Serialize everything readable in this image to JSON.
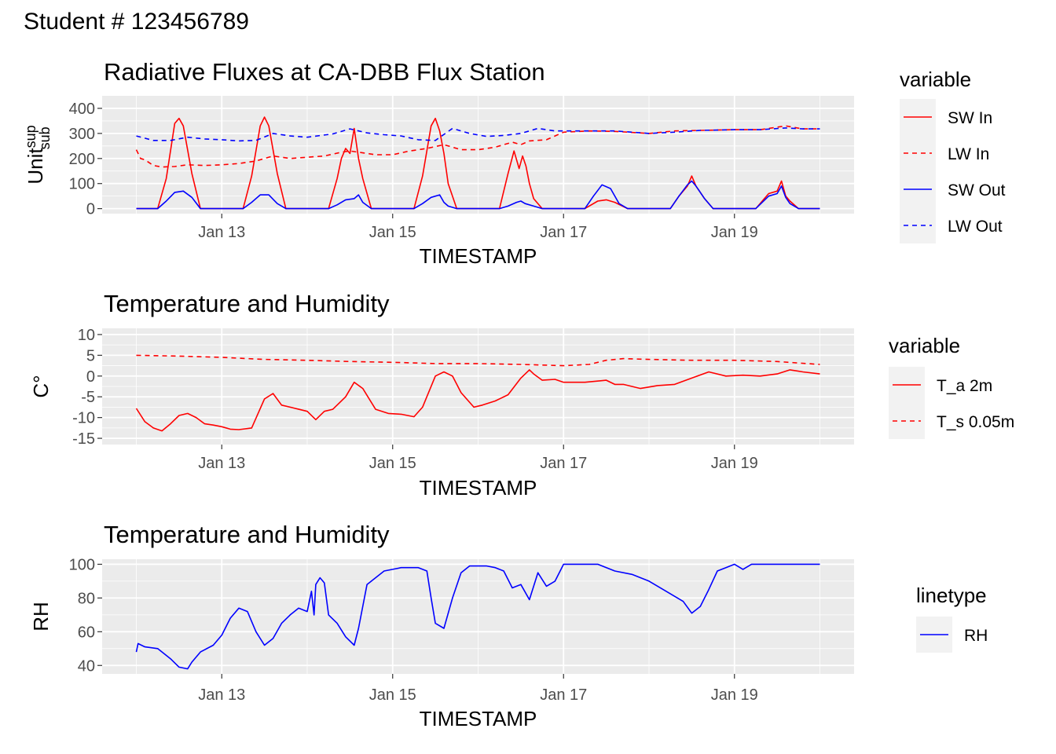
{
  "figure": {
    "main_title": "Student # 123456789"
  },
  "x_axis": {
    "label": "TIMESTAMP",
    "domain_days": [
      "Jan 12 00:00",
      "Jan 20 00:00"
    ],
    "ticks": [
      "Jan 13",
      "Jan 15",
      "Jan 17",
      "Jan 19"
    ],
    "tick_days": [
      13,
      15,
      17,
      19
    ]
  },
  "colors": {
    "red": "#ff0000",
    "blue": "#0000ff",
    "panel_bg": "#ebebeb",
    "grid": "#ffffff",
    "legend_key_bg": "#f2f2f2"
  },
  "chart_data": [
    {
      "type": "line",
      "title": "Radiative Fluxes at CA-DBB Flux Station",
      "xlabel": "TIMESTAMP",
      "ylabel": "Unit",
      "ylabel_sup": "sup",
      "ylabel_sub": "sub",
      "ylim": [
        -20,
        450
      ],
      "yticks": [
        0,
        100,
        200,
        300,
        400
      ],
      "ytick_labels": [
        "0",
        "100",
        "200",
        "300",
        "400"
      ],
      "legend": {
        "title": "variable",
        "position": "right"
      },
      "series": [
        {
          "name": "SW In",
          "color": "#ff0000",
          "dash": "solid",
          "x": [
            12.0,
            12.15,
            12.25,
            12.35,
            12.45,
            12.5,
            12.55,
            12.65,
            12.75,
            12.85,
            13.0,
            13.15,
            13.25,
            13.35,
            13.45,
            13.5,
            13.55,
            13.65,
            13.75,
            13.85,
            14.0,
            14.15,
            14.25,
            14.35,
            14.4,
            14.45,
            14.5,
            14.55,
            14.6,
            14.65,
            14.75,
            14.85,
            15.0,
            15.15,
            15.25,
            15.35,
            15.45,
            15.5,
            15.55,
            15.6,
            15.65,
            15.75,
            15.85,
            16.0,
            16.15,
            16.25,
            16.35,
            16.42,
            16.48,
            16.52,
            16.56,
            16.6,
            16.65,
            16.75,
            16.85,
            17.0,
            17.25,
            17.4,
            17.5,
            17.6,
            17.75,
            18.0,
            18.25,
            18.35,
            18.45,
            18.5,
            18.55,
            18.65,
            18.75,
            19.0,
            19.25,
            19.4,
            19.5,
            19.55,
            19.6,
            19.65,
            19.75,
            20.0
          ],
          "y": [
            0,
            0,
            0,
            120,
            340,
            360,
            330,
            140,
            0,
            0,
            0,
            0,
            0,
            130,
            330,
            365,
            330,
            140,
            0,
            0,
            0,
            0,
            0,
            120,
            200,
            240,
            220,
            320,
            200,
            120,
            0,
            0,
            0,
            0,
            0,
            130,
            330,
            360,
            310,
            220,
            100,
            0,
            0,
            0,
            0,
            0,
            140,
            230,
            160,
            210,
            170,
            100,
            40,
            0,
            0,
            0,
            0,
            30,
            35,
            25,
            0,
            0,
            0,
            50,
            90,
            130,
            90,
            40,
            0,
            0,
            0,
            60,
            70,
            110,
            50,
            30,
            0,
            0
          ]
        },
        {
          "name": "LW In",
          "color": "#ff0000",
          "dash": "dashed",
          "x": [
            12.0,
            12.05,
            12.1,
            12.2,
            12.3,
            12.45,
            12.6,
            12.8,
            13.0,
            13.2,
            13.4,
            13.5,
            13.6,
            13.8,
            14.0,
            14.2,
            14.4,
            14.5,
            14.6,
            14.8,
            15.0,
            15.2,
            15.4,
            15.6,
            15.8,
            16.0,
            16.2,
            16.4,
            16.5,
            16.6,
            16.8,
            17.0,
            17.3,
            17.6,
            18.0,
            18.3,
            18.6,
            19.0,
            19.3,
            19.6,
            19.8,
            20.0
          ],
          "y": [
            235,
            200,
            195,
            172,
            166,
            168,
            175,
            172,
            175,
            180,
            190,
            200,
            210,
            200,
            205,
            210,
            225,
            230,
            225,
            215,
            215,
            230,
            240,
            255,
            235,
            235,
            245,
            265,
            255,
            270,
            275,
            305,
            310,
            308,
            300,
            310,
            312,
            315,
            315,
            330,
            318,
            318
          ]
        },
        {
          "name": "SW Out",
          "color": "#0000ff",
          "dash": "solid",
          "x": [
            12.0,
            12.15,
            12.25,
            12.35,
            12.45,
            12.55,
            12.65,
            12.75,
            12.85,
            13.0,
            13.25,
            13.35,
            13.45,
            13.55,
            13.65,
            13.75,
            14.0,
            14.25,
            14.35,
            14.45,
            14.55,
            14.6,
            14.65,
            14.75,
            15.0,
            15.25,
            15.35,
            15.45,
            15.55,
            15.6,
            15.65,
            15.75,
            16.0,
            16.25,
            16.35,
            16.45,
            16.5,
            16.55,
            16.65,
            16.75,
            17.0,
            17.25,
            17.35,
            17.45,
            17.55,
            17.65,
            17.75,
            18.0,
            18.25,
            18.35,
            18.45,
            18.5,
            18.55,
            18.65,
            18.75,
            19.0,
            19.25,
            19.4,
            19.5,
            19.55,
            19.6,
            19.65,
            19.75,
            20.0
          ],
          "y": [
            0,
            0,
            0,
            30,
            65,
            70,
            45,
            0,
            0,
            0,
            0,
            25,
            55,
            55,
            20,
            0,
            0,
            0,
            15,
            35,
            40,
            55,
            25,
            0,
            0,
            0,
            20,
            45,
            55,
            25,
            10,
            0,
            0,
            0,
            10,
            25,
            30,
            20,
            10,
            0,
            0,
            0,
            50,
            95,
            80,
            20,
            0,
            0,
            0,
            50,
            95,
            110,
            90,
            40,
            0,
            0,
            0,
            50,
            60,
            90,
            45,
            20,
            0,
            0
          ]
        },
        {
          "name": "LW Out",
          "color": "#0000ff",
          "dash": "dashed",
          "x": [
            12.0,
            12.2,
            12.4,
            12.6,
            12.8,
            13.0,
            13.2,
            13.4,
            13.6,
            13.8,
            14.0,
            14.3,
            14.5,
            14.7,
            14.9,
            15.1,
            15.3,
            15.5,
            15.7,
            15.9,
            16.1,
            16.3,
            16.5,
            16.7,
            16.9,
            17.0,
            17.3,
            17.6,
            18.0,
            18.3,
            18.6,
            19.0,
            19.3,
            19.6,
            19.8,
            20.0
          ],
          "y": [
            290,
            272,
            272,
            285,
            278,
            275,
            270,
            272,
            300,
            290,
            285,
            298,
            318,
            302,
            295,
            290,
            275,
            272,
            320,
            300,
            288,
            292,
            300,
            320,
            310,
            310,
            310,
            310,
            300,
            305,
            312,
            315,
            315,
            322,
            318,
            318
          ]
        }
      ]
    },
    {
      "type": "line",
      "title": "Temperature and Humidity",
      "xlabel": "TIMESTAMP",
      "ylabel": "C°",
      "ylim": [
        -16.5,
        11.5
      ],
      "yticks": [
        -15,
        -10,
        -5,
        0,
        5,
        10
      ],
      "ytick_labels": [
        "-15",
        "-10",
        "-5",
        "0",
        "5",
        "10"
      ],
      "legend": {
        "title": "variable",
        "position": "right"
      },
      "series": [
        {
          "name": "T_a 2m",
          "color": "#ff0000",
          "dash": "solid",
          "x": [
            12.0,
            12.1,
            12.2,
            12.3,
            12.4,
            12.5,
            12.6,
            12.7,
            12.8,
            12.9,
            13.0,
            13.1,
            13.2,
            13.35,
            13.5,
            13.6,
            13.7,
            13.8,
            14.0,
            14.1,
            14.2,
            14.3,
            14.45,
            14.55,
            14.65,
            14.8,
            14.95,
            15.1,
            15.25,
            15.35,
            15.5,
            15.6,
            15.7,
            15.8,
            15.95,
            16.05,
            16.2,
            16.35,
            16.5,
            16.6,
            16.65,
            16.75,
            16.9,
            17.0,
            17.25,
            17.5,
            17.6,
            17.7,
            17.9,
            18.1,
            18.3,
            18.5,
            18.7,
            18.9,
            19.1,
            19.3,
            19.5,
            19.65,
            19.8,
            20.0
          ],
          "y": [
            -7.8,
            -11,
            -12.5,
            -13.2,
            -11.5,
            -9.5,
            -9,
            -10,
            -11.5,
            -11.8,
            -12.2,
            -12.8,
            -12.9,
            -12.5,
            -5.5,
            -4.2,
            -7,
            -7.5,
            -8.5,
            -10.5,
            -8.5,
            -8,
            -5,
            -1.5,
            -3,
            -8,
            -9,
            -9.2,
            -9.8,
            -7.5,
            0,
            1,
            0,
            -4,
            -7.5,
            -7,
            -6,
            -4.5,
            -0.5,
            1.5,
            0.5,
            -1,
            -0.8,
            -1.5,
            -1.5,
            -1,
            -2,
            -2,
            -3,
            -2.3,
            -2,
            -0.5,
            1,
            0,
            0.2,
            0,
            0.5,
            1.5,
            1,
            0.5
          ]
        },
        {
          "name": "T_s 0.05m",
          "color": "#ff0000",
          "dash": "dashed",
          "x": [
            12.0,
            12.5,
            13.0,
            13.5,
            14.0,
            14.5,
            15.0,
            15.5,
            16.0,
            16.5,
            17.0,
            17.3,
            17.5,
            17.7,
            18.0,
            18.5,
            19.0,
            19.5,
            20.0
          ],
          "y": [
            5.0,
            4.8,
            4.5,
            4.0,
            3.8,
            3.5,
            3.3,
            3.0,
            3.0,
            2.8,
            2.5,
            2.8,
            3.8,
            4.2,
            4.0,
            3.8,
            3.8,
            3.5,
            2.8
          ]
        }
      ]
    },
    {
      "type": "line",
      "title": "Temperature and Humidity",
      "xlabel": "TIMESTAMP",
      "ylabel": "RH",
      "ylim": [
        35,
        103
      ],
      "yticks": [
        40,
        60,
        80,
        100
      ],
      "ytick_labels": [
        "40",
        "60",
        "80",
        "100"
      ],
      "legend": {
        "title": "linetype",
        "position": "right"
      },
      "series": [
        {
          "name": "RH",
          "color": "#0000ff",
          "dash": "solid",
          "x": [
            12.0,
            12.02,
            12.1,
            12.25,
            12.4,
            12.5,
            12.6,
            12.65,
            12.75,
            12.9,
            13.0,
            13.1,
            13.2,
            13.3,
            13.4,
            13.5,
            13.6,
            13.7,
            13.8,
            13.9,
            14.0,
            14.05,
            14.08,
            14.1,
            14.15,
            14.2,
            14.25,
            14.35,
            14.45,
            14.55,
            14.6,
            14.7,
            14.8,
            14.9,
            15.0,
            15.1,
            15.2,
            15.3,
            15.4,
            15.45,
            15.5,
            15.6,
            15.7,
            15.8,
            15.9,
            16.0,
            16.1,
            16.2,
            16.3,
            16.4,
            16.5,
            16.6,
            16.7,
            16.8,
            16.9,
            17.0,
            17.1,
            17.2,
            17.4,
            17.6,
            17.8,
            18.0,
            18.2,
            18.4,
            18.5,
            18.6,
            18.7,
            18.8,
            18.9,
            19.0,
            19.1,
            19.2,
            19.3,
            19.5,
            19.7,
            20.0
          ],
          "y": [
            48,
            53,
            51,
            50,
            44,
            39,
            38,
            42,
            48,
            52,
            58,
            68,
            74,
            72,
            60,
            52,
            56,
            65,
            70,
            74,
            72,
            84,
            70,
            88,
            92,
            89,
            70,
            65,
            57,
            52,
            62,
            88,
            92,
            96,
            97,
            98,
            98,
            98,
            96,
            80,
            65,
            62,
            80,
            95,
            99,
            99,
            99,
            98,
            96,
            86,
            88,
            79,
            95,
            87,
            90,
            100,
            100,
            100,
            100,
            96,
            94,
            90,
            84,
            78,
            71,
            75,
            85,
            96,
            98,
            100,
            97,
            100,
            100,
            100,
            100,
            100
          ]
        }
      ]
    }
  ]
}
